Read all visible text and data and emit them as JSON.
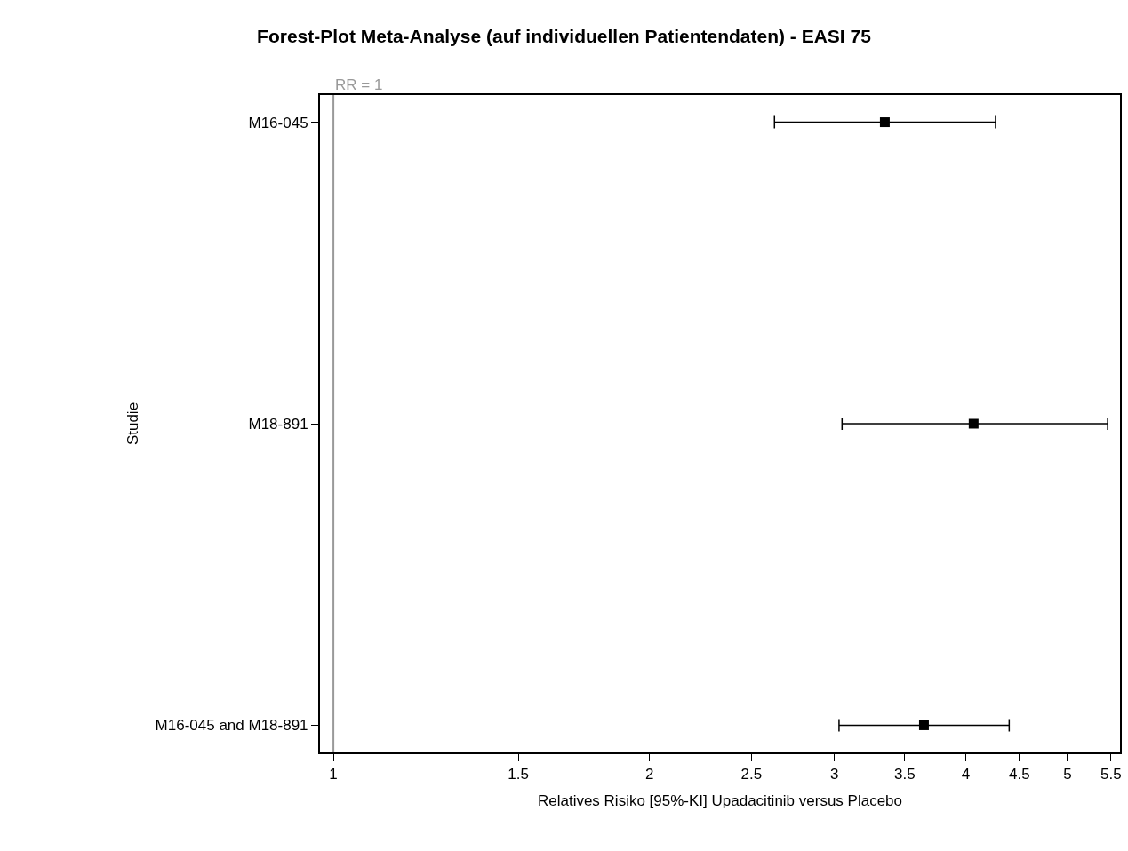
{
  "chart_data": {
    "type": "scatter",
    "title": "Forest-Plot Meta-Analyse (auf individuellen Patientendaten) - EASI 75",
    "xlabel": "Relatives Risiko [95%-KI] Upadacitinib versus Placebo",
    "ylabel": "Studie",
    "orientation": "horizontal",
    "categories": [
      "M16-045",
      "M18-891",
      "M16-045 and M18-891"
    ],
    "series": [
      {
        "color": "#000000",
        "values": [
          3.35,
          4.07,
          3.65
        ],
        "errors": [
          [
            2.63,
            4.27
          ],
          [
            3.05,
            5.46
          ],
          [
            3.03,
            4.4
          ]
        ]
      }
    ],
    "log": "x",
    "xlim": [
      0.971,
      5.61
    ],
    "xticks": [
      1,
      1.5,
      2,
      2.5,
      3,
      3.5,
      4,
      4.5,
      5,
      5.5
    ],
    "ref_lines": [
      {
        "axis": "x",
        "value": 1,
        "label": "RR = 1",
        "color": "#999999"
      }
    ],
    "marker": "square",
    "grid": false
  }
}
